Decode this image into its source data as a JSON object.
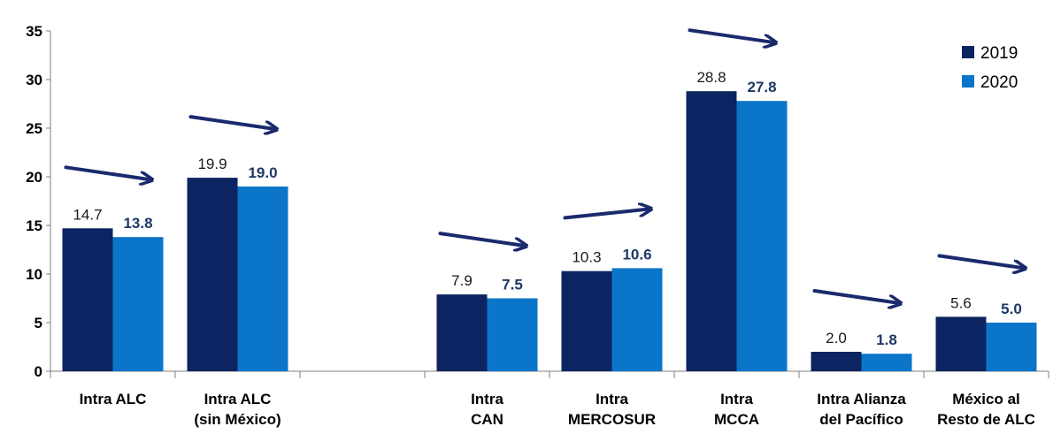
{
  "chart_data": {
    "type": "bar",
    "categories": [
      [
        "Intra ALC"
      ],
      [
        "Intra ALC",
        "(sin México)"
      ],
      [],
      [
        "Intra",
        "CAN"
      ],
      [
        "Intra",
        "MERCOSUR"
      ],
      [
        "Intra",
        "MCCA"
      ],
      [
        "Intra Alianza",
        "del Pacífico"
      ],
      [
        "México al",
        "Resto de ALC"
      ]
    ],
    "series": [
      {
        "name": "2019",
        "values": [
          14.7,
          19.9,
          null,
          7.9,
          10.3,
          28.8,
          2.0,
          5.6
        ],
        "labels": [
          "14.7",
          "19.9",
          "",
          "7.9",
          "10.3",
          "28.8",
          "2.0",
          "5.6"
        ],
        "color": "#0c2461"
      },
      {
        "name": "2020",
        "values": [
          13.8,
          19.0,
          null,
          7.5,
          10.6,
          27.8,
          1.8,
          5.0
        ],
        "labels": [
          "13.8",
          "19.0",
          "",
          "7.5",
          "10.6",
          "27.8",
          "1.8",
          "5.0"
        ],
        "color": "#0a75c9"
      }
    ],
    "trend_arrows": [
      "down",
      "down",
      "",
      "down",
      "up",
      "down",
      "down",
      "down"
    ],
    "arrow_color": "#1a2a6c",
    "ylim": [
      0,
      35
    ],
    "yticks": [
      "0",
      "5",
      "10",
      "15",
      "20",
      "25",
      "30",
      "35"
    ],
    "legend_position": "top-right",
    "grid": false
  }
}
